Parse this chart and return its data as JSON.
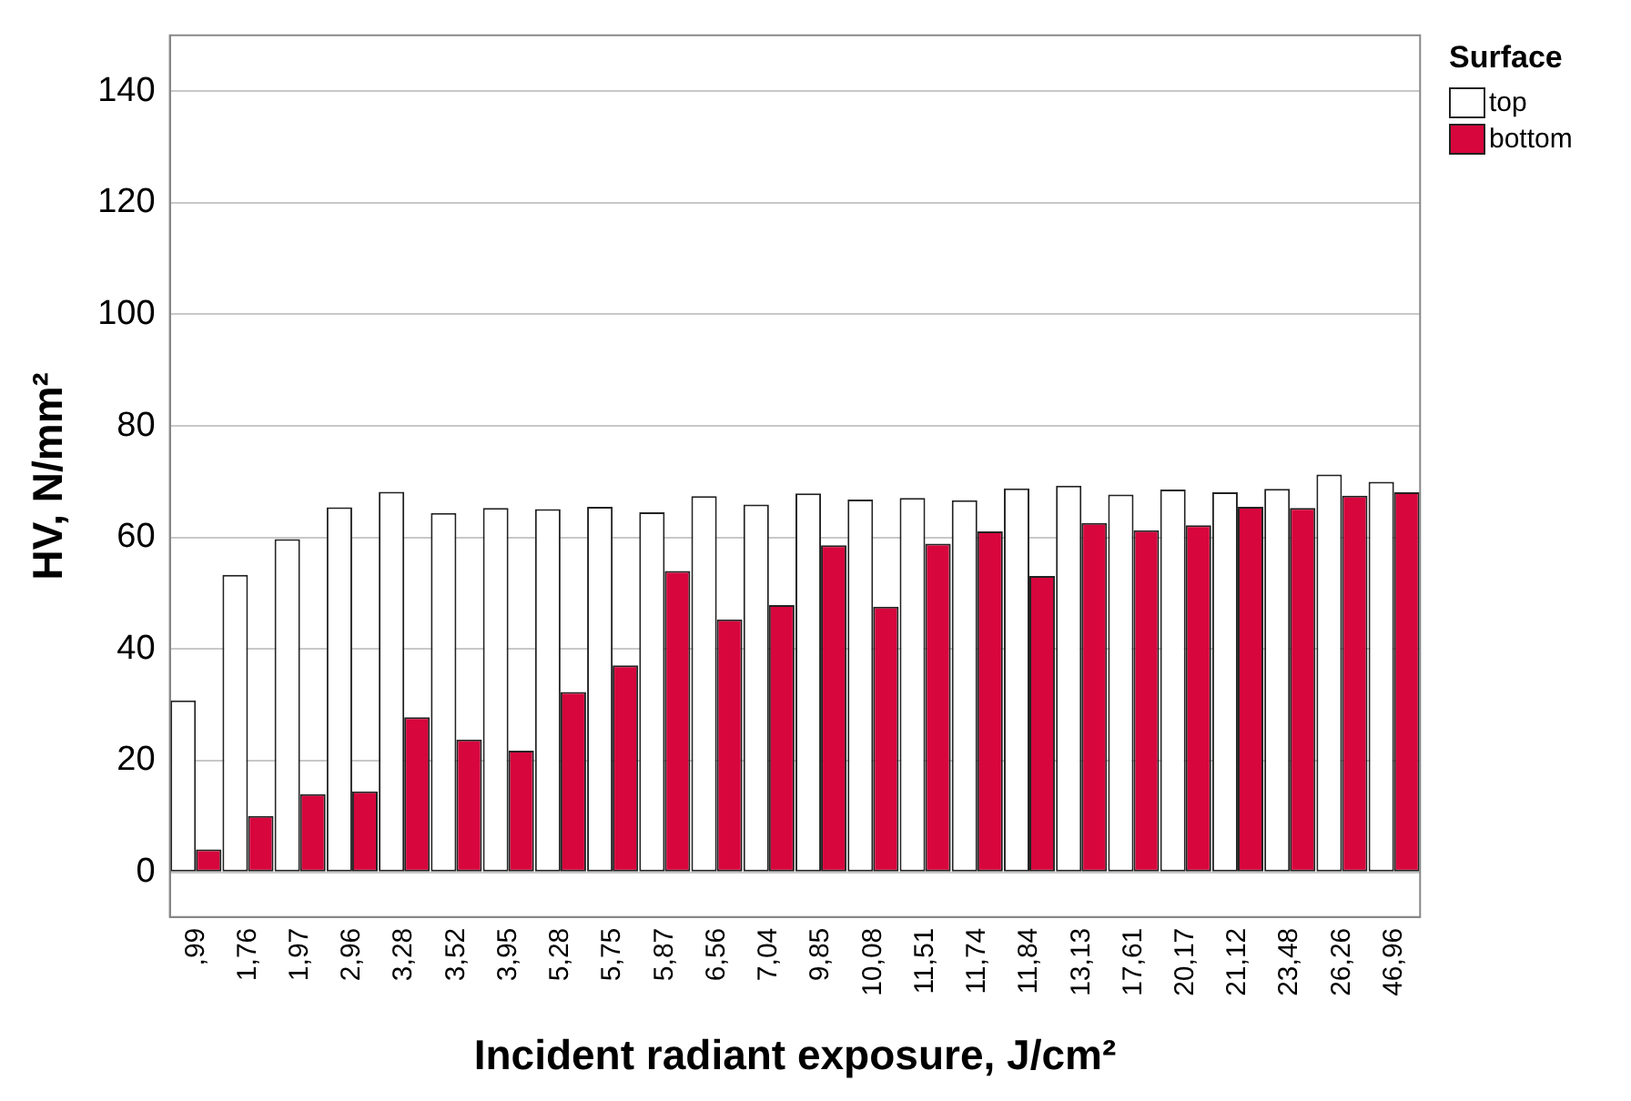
{
  "chart_data": {
    "type": "bar",
    "xlabel": "Incident radiant exposure, J/cm²",
    "ylabel": "HV, N/mm²",
    "legend_title": "Surface",
    "categories": [
      ",99",
      "1,76",
      "1,97",
      "2,96",
      "3,28",
      "3,52",
      "3,95",
      "5,28",
      "5,75",
      "5,87",
      "6,56",
      "7,04",
      "9,85",
      "10,08",
      "11,51",
      "11,74",
      "11,84",
      "13,13",
      "17,61",
      "20,17",
      "21,12",
      "23,48",
      "26,26",
      "46,96"
    ],
    "series": [
      {
        "name": "top",
        "color": "#ffffff",
        "values": [
          30.8,
          53.3,
          59.7,
          65.4,
          68.2,
          64.4,
          65.3,
          65.1,
          65.5,
          64.5,
          67.4,
          65.9,
          67.9,
          66.8,
          67.1,
          66.7,
          68.8,
          69.3,
          67.7,
          68.6,
          68.1,
          68.7,
          71.3,
          70.0
        ]
      },
      {
        "name": "bottom",
        "color": "#d7063d",
        "values": [
          4.1,
          10.1,
          14.0,
          14.5,
          27.8,
          23.8,
          21.8,
          32.3,
          37.1,
          54.0,
          45.3,
          47.9,
          58.6,
          47.6,
          58.9,
          61.1,
          53.1,
          62.6,
          61.3,
          62.2,
          65.5,
          65.3,
          67.5,
          68.1
        ]
      }
    ],
    "ylim": [
      -8,
      150
    ],
    "yticks": [
      0,
      20,
      40,
      60,
      80,
      100,
      120,
      140
    ],
    "grid": "y",
    "legend": "top right"
  }
}
